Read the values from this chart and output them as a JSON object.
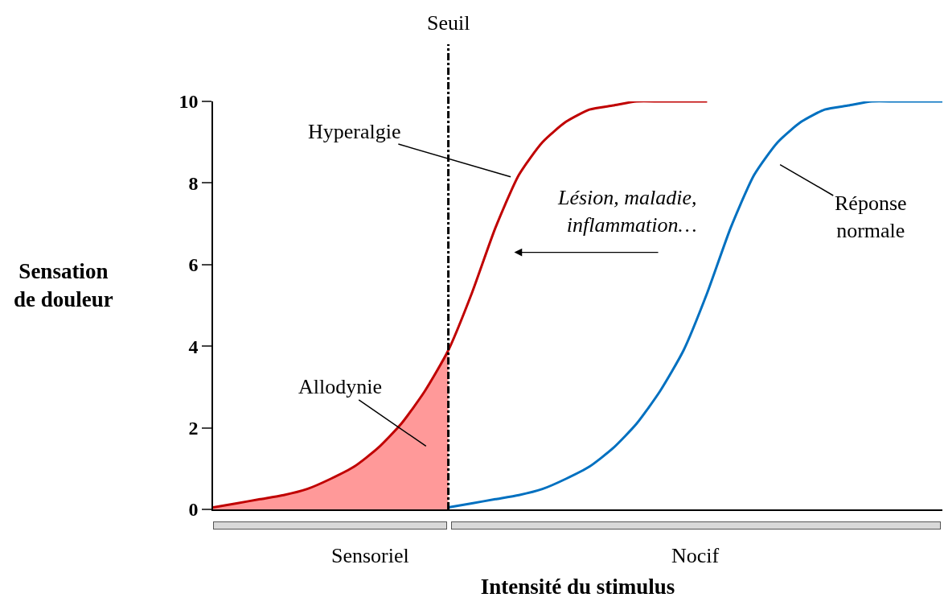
{
  "chart_data": {
    "type": "line",
    "xlabel": "Intensité du stimulus",
    "ylabel": "Sensation de douleur",
    "categories": [
      null,
      null,
      null,
      null,
      null,
      null,
      null,
      null,
      null,
      null,
      null,
      null,
      null,
      null,
      null,
      null,
      null,
      null,
      null,
      null,
      null,
      null,
      null,
      null,
      null,
      null,
      null,
      null,
      null,
      null,
      null,
      null
    ],
    "series": [
      {
        "type": "area",
        "color": "#ff9999",
        "values": [
          0.05,
          0.15,
          0.25,
          0.35,
          0.5,
          0.75,
          1.05,
          1.5,
          2.1,
          2.9,
          3.9,
          null,
          null,
          null,
          null,
          null,
          null,
          null,
          null,
          null,
          null,
          null,
          null,
          null,
          null,
          null,
          null,
          null,
          null,
          null,
          null,
          null
        ]
      },
      {
        "color": "#c00000",
        "values": [
          0.05,
          0.15,
          0.25,
          0.35,
          0.5,
          0.75,
          1.05,
          1.5,
          2.1,
          2.9,
          3.9,
          5.3,
          6.9,
          8.2,
          9.0,
          9.5,
          9.8,
          9.9,
          10,
          10,
          10,
          10,
          null,
          null,
          null,
          null,
          null,
          null,
          null,
          null,
          null,
          null
        ]
      },
      {
        "color": "#0070c0",
        "values": [
          null,
          null,
          null,
          null,
          null,
          null,
          null,
          null,
          null,
          null,
          0.05,
          0.15,
          0.25,
          0.35,
          0.5,
          0.75,
          1.05,
          1.5,
          2.1,
          2.9,
          3.9,
          5.3,
          6.9,
          8.2,
          9.0,
          9.5,
          9.8,
          9.9,
          10,
          10,
          10,
          10
        ]
      }
    ],
    "ylim": [
      0,
      10
    ],
    "yticks": [
      0,
      2,
      4,
      6,
      8,
      10
    ],
    "grid": false,
    "tick_labels": "y",
    "marker": "none",
    "line_style": "solid",
    "annotations": [
      "Seuil",
      "Hyperalgie",
      "Allodynie",
      "Réponse normale",
      "Lésion, maladie, inflammation…",
      "Sensoriel",
      "Nocif"
    ]
  }
}
